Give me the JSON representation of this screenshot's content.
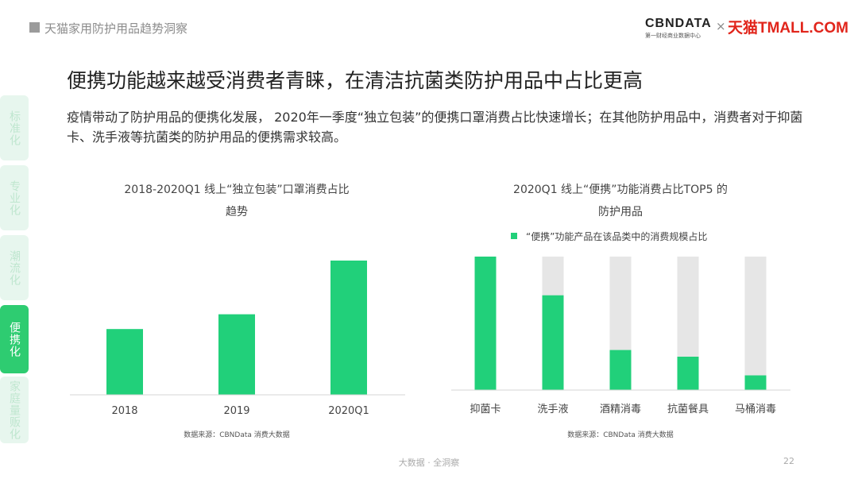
{
  "header": {
    "title": "天猫家用防护用品趋势洞察",
    "logo_cbn": "CBNDATA",
    "logo_cbn_sub": "第一财经商业数据中心",
    "logo_sep": "×",
    "logo_tmall": "天猫TMALL.COM"
  },
  "headline": "便携功能越来越受消费者青睐，在清洁抗菌类防护用品中占比更高",
  "description": "疫情带动了防护用品的便携化发展， 2020年一季度“独立包装”的便携口罩消费占比快速增长；在其他防护用品中，消费者对于抑菌卡、洗手液等抗菌类的防护用品的便携需求较高。",
  "side_nav": [
    {
      "label": "标准化",
      "active": false
    },
    {
      "label": "专业化",
      "active": false
    },
    {
      "label": "潮流化",
      "active": false
    },
    {
      "label": "便携化",
      "active": true
    },
    {
      "label": "家庭量贩化",
      "active": false
    }
  ],
  "colors": {
    "bar": "#21d07a",
    "track": "#e6e6e6",
    "active_tab": "#2ecc71",
    "inactive_tab": "#e7f6ee"
  },
  "chart_data": [
    {
      "type": "bar",
      "title_line1": "2018-2020Q1 线上“独立包装”口罩消费占比",
      "title_line2": "趋势",
      "categories": [
        "2018",
        "2019",
        "2020Q1"
      ],
      "values": [
        49,
        60,
        100
      ],
      "ylim": [
        0,
        100
      ],
      "source": "数据来源：CBNData 消费大数据"
    },
    {
      "type": "bar",
      "title_line1": "2020Q1 线上“便携”功能消费占比TOP5 的",
      "title_line2": "防护用品",
      "legend": "“便携”功能产品在该品类中的消费规模占比",
      "legend_position": "top",
      "categories": [
        "抑菌卡",
        "洗手液",
        "酒精消毒",
        "抗菌餐具",
        "马桶消毒"
      ],
      "values": [
        100,
        71,
        30,
        25,
        11
      ],
      "ylim": [
        0,
        100
      ],
      "source": "数据来源：CBNData 消费大数据"
    }
  ],
  "footer": "大数据 · 全洞察",
  "page_number": "22"
}
